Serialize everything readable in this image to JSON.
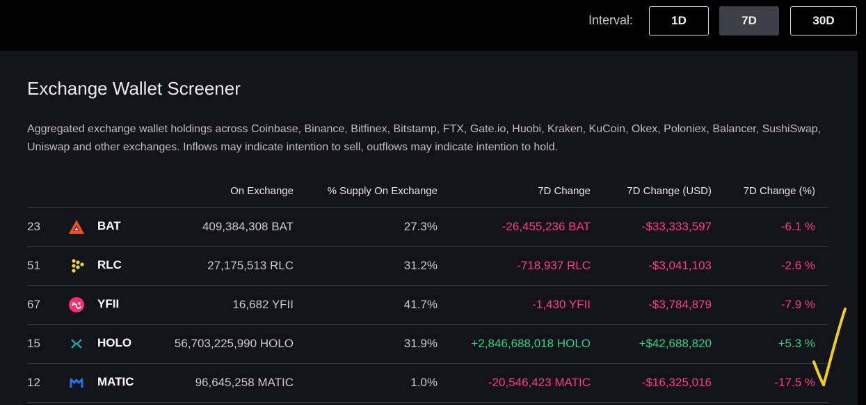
{
  "interval": {
    "label": "Interval:",
    "options": [
      "1D",
      "7D",
      "30D"
    ],
    "selected": "7D"
  },
  "header": {
    "title": "Exchange Wallet Screener",
    "description": "Aggregated exchange wallet holdings across Coinbase, Binance, Bitfinex, Bitstamp, FTX, Gate.io, Huobi, Kraken, KuCoin, Okex, Poloniex, Balancer, SushiSwap, Uniswap and other exchanges. Inflows may indicate intention to sell, outflows may indicate intention to hold."
  },
  "table": {
    "columns": {
      "on_exchange": "On Exchange",
      "supply": "% Supply On Exchange",
      "change": "7D Change",
      "change_usd": "7D Change (USD)",
      "change_pct": "7D Change (%)"
    },
    "rows": [
      {
        "rank": "23",
        "symbol": "BAT",
        "icon": "bat-triangle-icon",
        "on_exchange": "409,384,308 BAT",
        "supply": "27.3%",
        "change": "-26,455,236 BAT",
        "change_usd": "-$33,333,597",
        "change_pct": "-6.1 %",
        "trend": "neg"
      },
      {
        "rank": "51",
        "symbol": "RLC",
        "icon": "rlc-dots-icon",
        "on_exchange": "27,175,513 RLC",
        "supply": "31.2%",
        "change": "-718,937 RLC",
        "change_usd": "-$3,041,103",
        "change_pct": "-2.6 %",
        "trend": "neg"
      },
      {
        "rank": "67",
        "symbol": "YFII",
        "icon": "yfii-circle-icon",
        "on_exchange": "16,682 YFII",
        "supply": "41.7%",
        "change": "-1,430 YFII",
        "change_usd": "-$3,784,879",
        "change_pct": "-7.9 %",
        "trend": "neg"
      },
      {
        "rank": "15",
        "symbol": "HOLO",
        "icon": "holo-icon",
        "on_exchange": "56,703,225,990 HOLO",
        "supply": "31.9%",
        "change": "+2,846,688,018 HOLO",
        "change_usd": "+$42,688,820",
        "change_pct": "+5.3 %",
        "trend": "pos"
      },
      {
        "rank": "12",
        "symbol": "MATIC",
        "icon": "matic-icon",
        "on_exchange": "96,645,258 MATIC",
        "supply": "1.0%",
        "change": "-20,546,423 MATIC",
        "change_usd": "-$16,325,016",
        "change_pct": "-17.5 %",
        "trend": "neg"
      }
    ]
  },
  "colors": {
    "negative": "#ff3b7f",
    "positive": "#2fd18a",
    "annotation": "#f2cf1d"
  }
}
